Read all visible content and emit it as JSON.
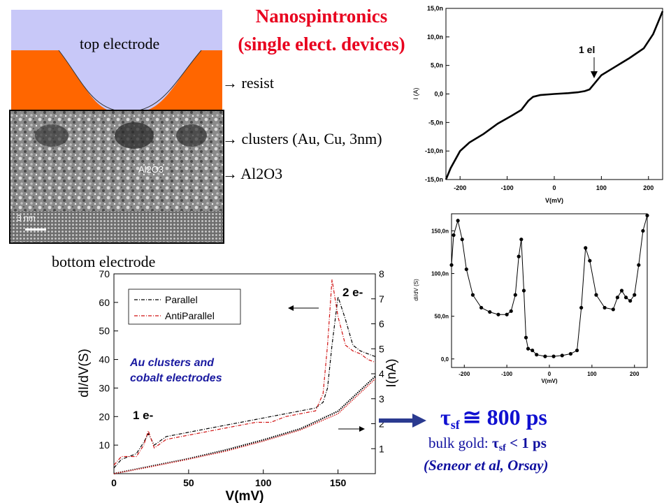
{
  "title": {
    "line1": "Nanospintronics",
    "line2": "(single elect. devices)"
  },
  "device": {
    "top_electrode": "top electrode",
    "resist": "resist",
    "clusters": "clusters (Au, Cu, 3nm)",
    "al2o3": "Al2O3",
    "bottom_electrode": "bottom electrode",
    "arrow": "→",
    "tem_label": "Al2O3",
    "scale_bar": "3 nm"
  },
  "colors": {
    "title": "#e8001e",
    "electrode": "#c8c8f8",
    "resist": "#ff6600",
    "tau": "#1010d0",
    "parallel": "#000000",
    "antiparallel": "#d01010"
  },
  "chart_data": [
    {
      "type": "line",
      "title": "",
      "xlabel": "V(mV)",
      "ylabel": "I (A)",
      "xlim": [
        -230,
        230
      ],
      "ylim": [
        -15,
        15
      ],
      "xticks": [
        "-200",
        "-100",
        "0",
        "100",
        "200"
      ],
      "yticks": [
        "15,0n",
        "10,0n",
        "5,0n",
        "0,0",
        "-5,0n",
        "-10,0n",
        "-15,0n"
      ],
      "annotation": "1 el",
      "series": [
        {
          "name": "I",
          "x": [
            -230,
            -220,
            -200,
            -180,
            -150,
            -120,
            -90,
            -70,
            -55,
            -45,
            -30,
            0,
            30,
            50,
            65,
            75,
            85,
            100,
            130,
            160,
            190,
            210,
            220,
            230
          ],
          "y": [
            -15,
            -13,
            -10,
            -8.5,
            -7,
            -5.2,
            -3.8,
            -2.8,
            -1.2,
            -0.5,
            -0.2,
            0,
            0.15,
            0.3,
            0.5,
            0.8,
            1.8,
            3.3,
            4.8,
            6.3,
            8,
            10.5,
            12.5,
            14.5
          ]
        }
      ]
    },
    {
      "type": "scatter",
      "title": "",
      "xlabel": "V(mV)",
      "ylabel": "dI/dV (S)",
      "xlim": [
        -230,
        230
      ],
      "ylim": [
        -10,
        170
      ],
      "xticks": [
        "-200",
        "-100",
        "0",
        "100",
        "200"
      ],
      "yticks": [
        "150,0n",
        "100,0n",
        "50,0n",
        "0,0"
      ],
      "series": [
        {
          "name": "dI/dV",
          "x": [
            -230,
            -225,
            -215,
            -205,
            -195,
            -180,
            -160,
            -140,
            -120,
            -100,
            -90,
            -80,
            -72,
            -66,
            -60,
            -55,
            -50,
            -40,
            -30,
            -10,
            10,
            30,
            50,
            65,
            75,
            85,
            95,
            110,
            130,
            150,
            160,
            170,
            180,
            190,
            200,
            210,
            220,
            230
          ],
          "y": [
            110,
            145,
            162,
            140,
            105,
            75,
            60,
            55,
            52,
            52,
            56,
            75,
            120,
            140,
            80,
            25,
            12,
            10,
            5,
            3,
            3,
            4,
            6,
            10,
            60,
            130,
            115,
            75,
            60,
            58,
            72,
            80,
            72,
            68,
            75,
            110,
            150,
            168
          ]
        }
      ]
    },
    {
      "type": "line",
      "title": "",
      "xlabel": "V(mV)",
      "ylabel": "dI/dV(S)",
      "y2label": "I(nA)",
      "xlim": [
        0,
        175
      ],
      "ylim": [
        0,
        70
      ],
      "y2lim": [
        0,
        8
      ],
      "xticks": [
        "0",
        "50",
        "100",
        "150"
      ],
      "yticks": [
        "10",
        "20",
        "30",
        "40",
        "50",
        "60",
        "70"
      ],
      "y2ticks": [
        "1",
        "2",
        "3",
        "4",
        "5",
        "6",
        "7",
        "8"
      ],
      "legend": [
        "Parallel",
        "AntiParallel"
      ],
      "annotations": [
        "2 e-",
        "1 e-",
        "Au clusters and",
        "cobalt electrodes"
      ],
      "series": [
        {
          "name": "Parallel",
          "axis": "left",
          "x": [
            0,
            5,
            10,
            15,
            20,
            23,
            27,
            35,
            45,
            55,
            65,
            75,
            85,
            95,
            105,
            115,
            125,
            135,
            140,
            143,
            146,
            150,
            155,
            160,
            165,
            170,
            175
          ],
          "y": [
            2,
            5,
            6,
            7,
            11,
            14,
            10,
            13,
            14,
            15,
            16,
            17,
            18,
            19,
            20,
            21,
            22,
            23,
            25,
            30,
            45,
            62,
            54,
            45,
            43,
            42,
            41
          ]
        },
        {
          "name": "AntiParallel",
          "axis": "left",
          "x": [
            0,
            5,
            10,
            15,
            20,
            23,
            27,
            35,
            45,
            55,
            65,
            75,
            85,
            95,
            105,
            115,
            125,
            135,
            140,
            143,
            146,
            150,
            155,
            160,
            165,
            170,
            175
          ],
          "y": [
            3,
            6,
            6,
            6,
            10,
            15,
            9,
            12,
            13,
            14,
            15,
            16,
            17,
            18,
            18,
            20,
            21,
            22,
            28,
            45,
            68,
            55,
            45,
            43,
            42,
            40,
            39
          ]
        },
        {
          "name": "I-Parallel",
          "axis": "right",
          "x": [
            0,
            25,
            50,
            75,
            100,
            125,
            150,
            175
          ],
          "y": [
            0,
            0.3,
            0.6,
            0.95,
            1.35,
            1.8,
            2.5,
            3.9
          ]
        },
        {
          "name": "I-AntiParallel",
          "axis": "right",
          "x": [
            0,
            25,
            50,
            75,
            100,
            125,
            150,
            175
          ],
          "y": [
            0,
            0.28,
            0.58,
            0.9,
            1.3,
            1.75,
            2.4,
            3.8
          ]
        }
      ]
    }
  ],
  "results": {
    "tau_sym": "τ",
    "tau_sub": "sf",
    "tau_value": "≅ 800 ps",
    "bulk_prefix": "bulk gold: ",
    "bulk_value": "< 1 ps",
    "reference": "(Seneor et al, Orsay)"
  }
}
